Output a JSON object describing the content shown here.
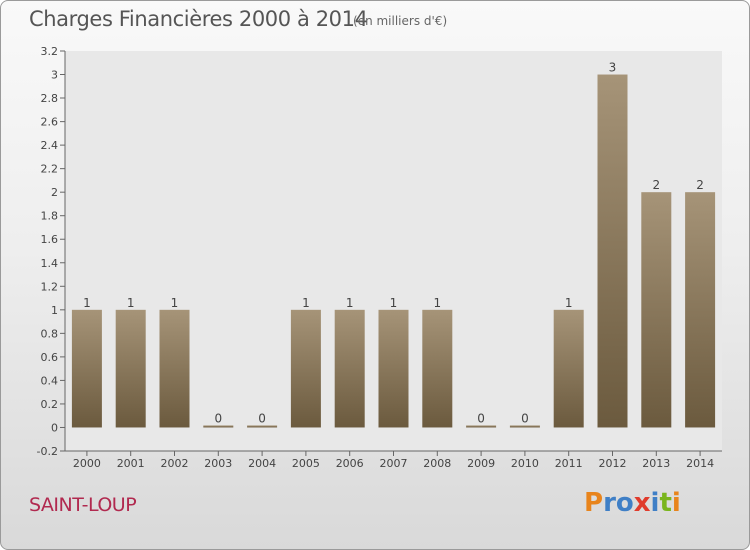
{
  "header": {
    "title": "Charges Financières 2000 à 2014",
    "unit": "(en milliers d'€)"
  },
  "footer": {
    "commune": "SAINT-LOUP",
    "logo_text": "Proxiti",
    "logo_letters": [
      {
        "ch": "P",
        "color": "#e8841c"
      },
      {
        "ch": "r",
        "color": "#3f7fc6"
      },
      {
        "ch": "o",
        "color": "#3f7fc6"
      },
      {
        "ch": "x",
        "color": "#e03b2c"
      },
      {
        "ch": "i",
        "color": "#3f7fc6"
      },
      {
        "ch": "t",
        "color": "#7ab51d"
      },
      {
        "ch": "i",
        "color": "#e8841c"
      }
    ]
  },
  "chart_data": {
    "type": "bar",
    "title": "Charges Financières 2000 à 2014",
    "subtitle": "(en milliers d'€)",
    "categories": [
      "2000",
      "2001",
      "2002",
      "2003",
      "2004",
      "2005",
      "2006",
      "2007",
      "2008",
      "2009",
      "2010",
      "2011",
      "2012",
      "2013",
      "2014"
    ],
    "values": [
      1,
      1,
      1,
      0,
      0,
      1,
      1,
      1,
      1,
      0,
      0,
      1,
      3,
      2,
      2
    ],
    "value_labels": [
      "1",
      "1",
      "1",
      "0",
      "0",
      "1",
      "1",
      "1",
      "1",
      "0",
      "0",
      "1",
      "3",
      "2",
      "2"
    ],
    "yticks": [
      "-0.2",
      "0",
      "0.2",
      "0.4",
      "0.6",
      "0.8",
      "1",
      "1.2",
      "1.4",
      "1.6",
      "1.8",
      "2",
      "2.2",
      "2.4",
      "2.6",
      "2.8",
      "3",
      "3.2"
    ],
    "ylim": [
      -0.2,
      3.2
    ],
    "grid": false,
    "bar_color_top": "#a69478",
    "bar_color_bottom": "#6b5a3e"
  }
}
